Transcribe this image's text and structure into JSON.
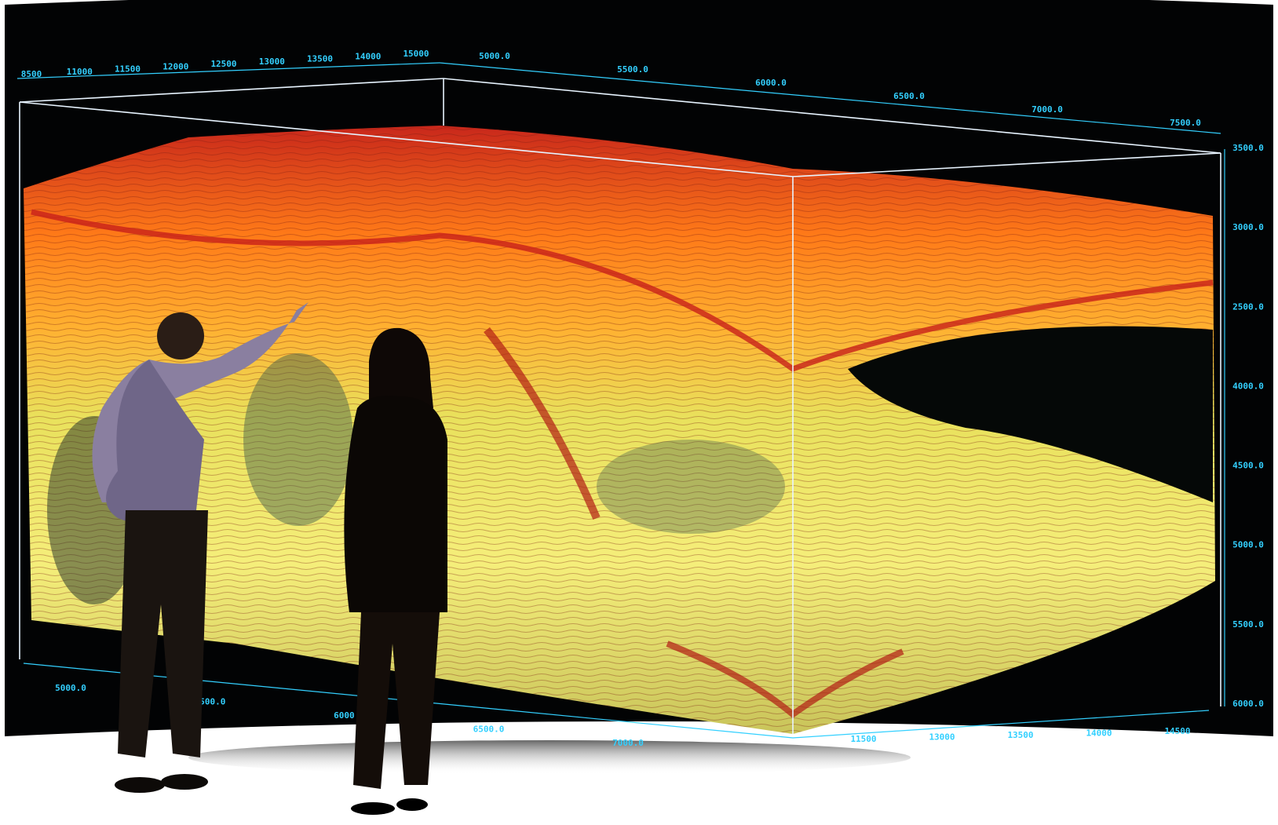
{
  "scene": {
    "description_colors": {
      "background": "#ffffff",
      "screen": "#020304",
      "axis": "#e8f4ff",
      "tick_labels": "#33d0ff",
      "seismic_high": "#d8261a",
      "seismic_mid": "#ff8c1a",
      "seismic_low": "#f3e85a",
      "seismic_shadow": "#3c5a4a"
    },
    "top_axis_left": [
      "8500",
      "11000",
      "11500",
      "12000",
      "12500",
      "13000",
      "13500",
      "14000",
      "15000"
    ],
    "top_axis_right": [
      "5000.0",
      "5500.0",
      "6000.0",
      "6500.0",
      "7000.0",
      "7500.0"
    ],
    "right_axis": [
      "3500.0",
      "3000.0",
      "2500.0",
      "4000.0",
      "4500.0",
      "5000.0",
      "5500.0",
      "6000.0"
    ],
    "bottom_axis_left": [
      "5000.0",
      "5500.0",
      "6000.0",
      "6500.0",
      "7000.0"
    ],
    "bottom_axis_right": [
      "11500",
      "13000",
      "13500",
      "14000",
      "14500"
    ]
  }
}
